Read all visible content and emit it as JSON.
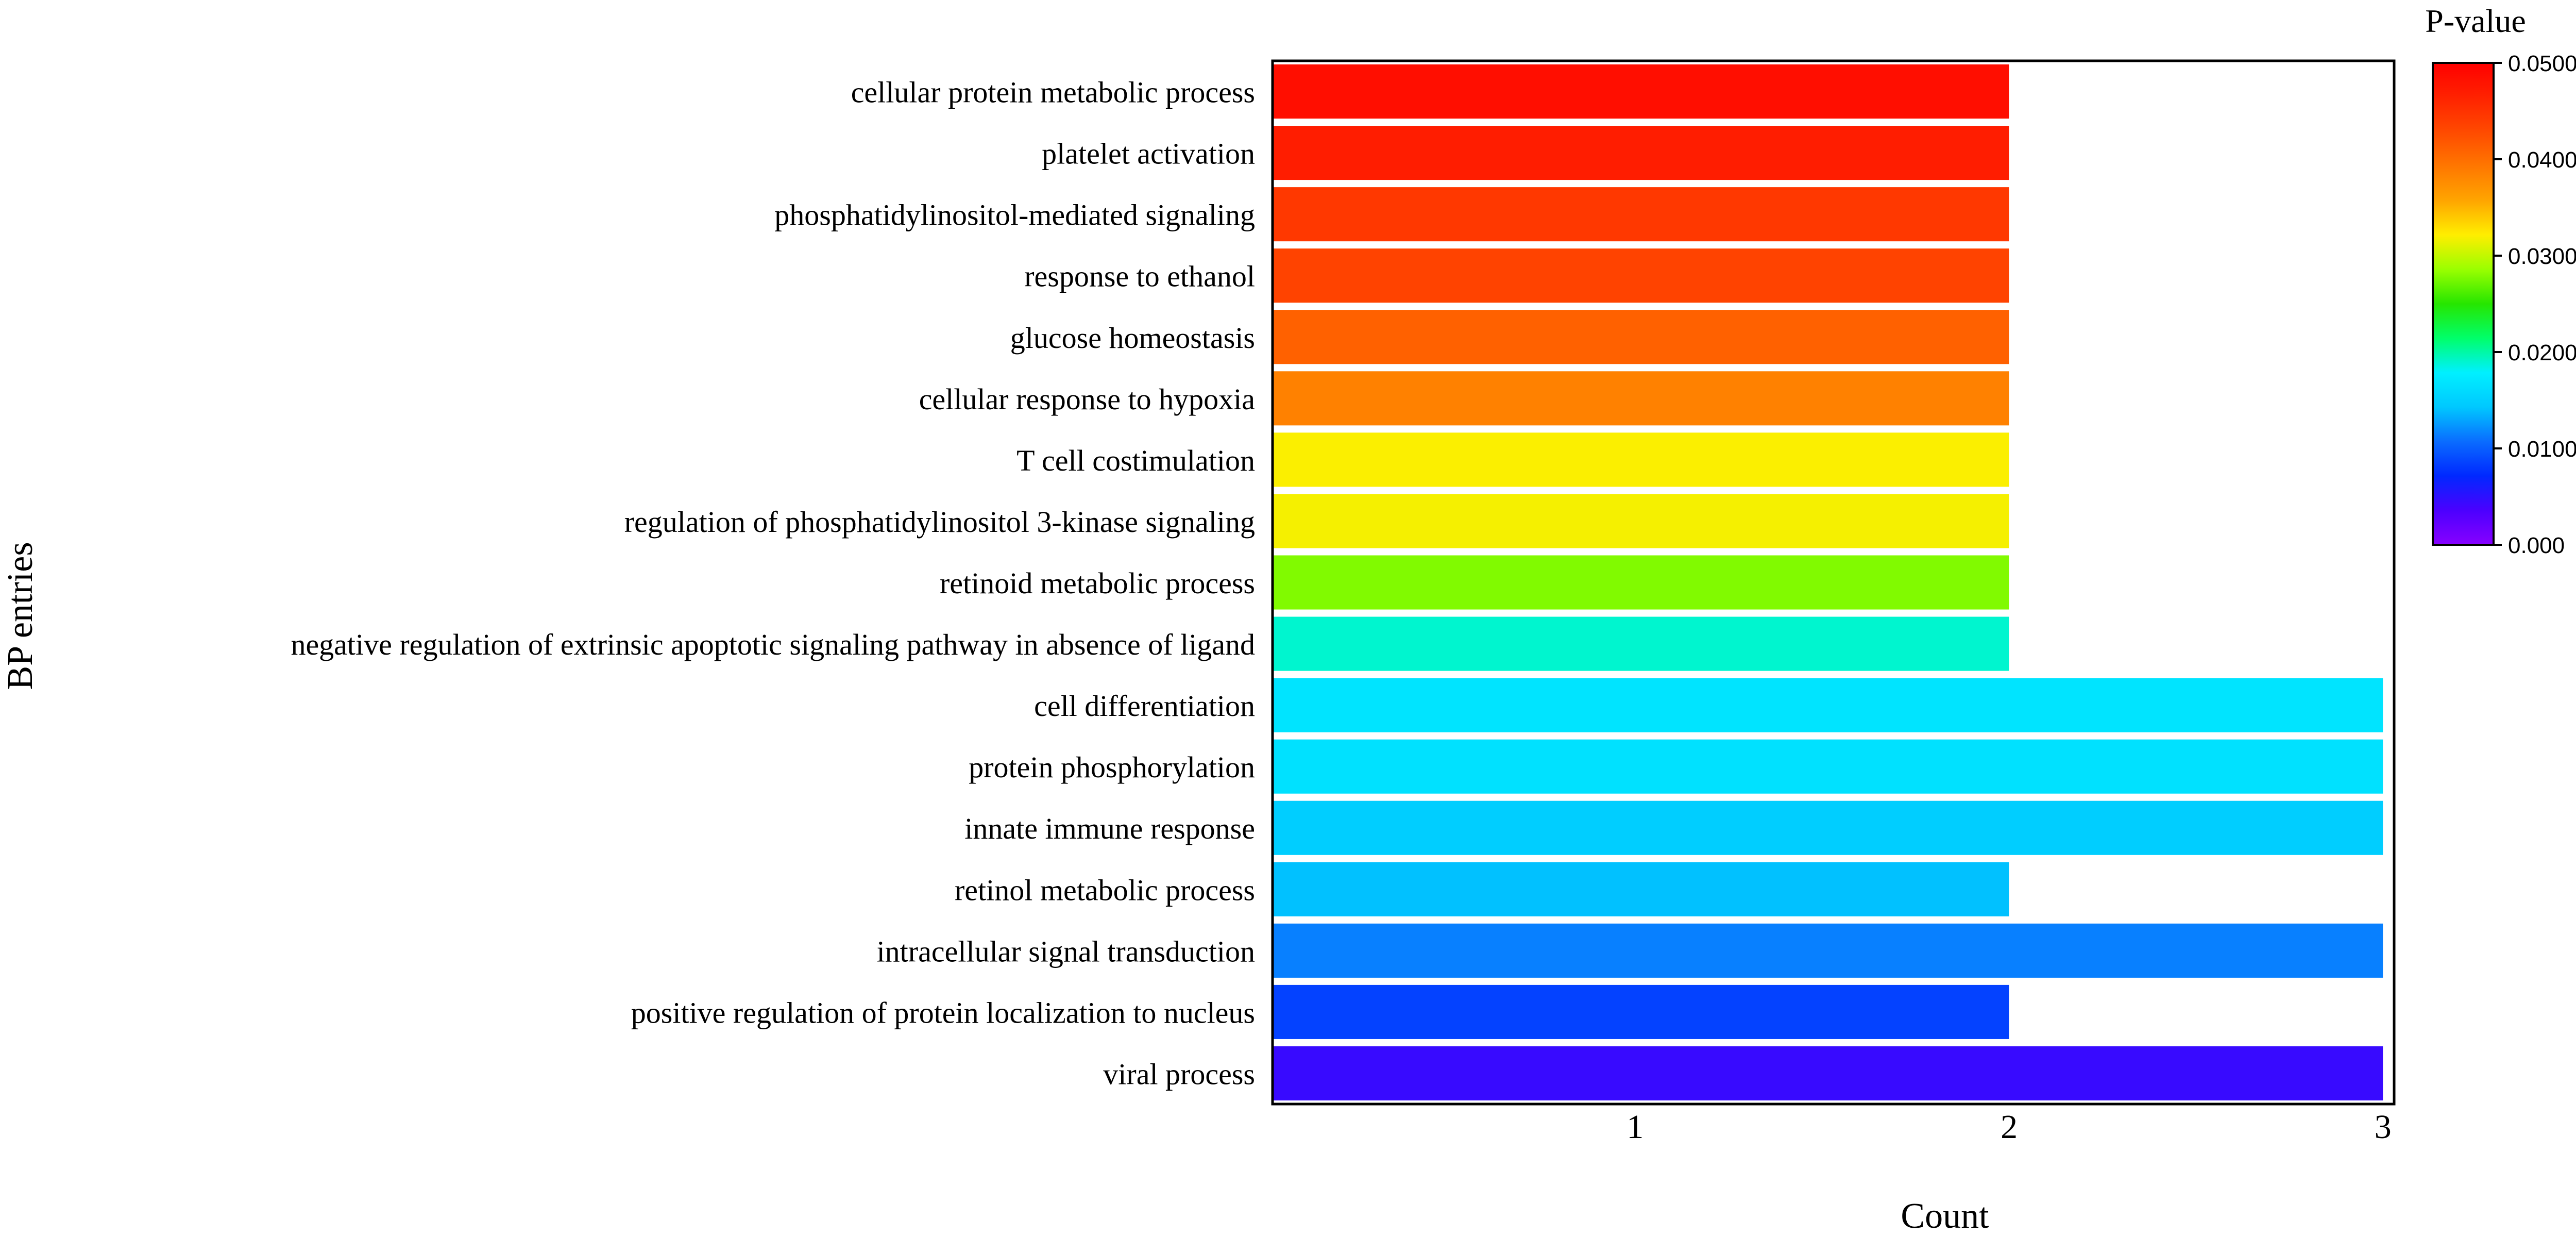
{
  "chart_data": {
    "type": "bar",
    "orientation": "horizontal",
    "xlabel": "Count",
    "ylabel": "BP entries",
    "xlim": [
      0.03,
      3.03
    ],
    "xticks": [
      "1",
      "2",
      "3"
    ],
    "categories": [
      "cellular protein metabolic process",
      "platelet activation",
      "phosphatidylinositol-mediated signaling",
      "response to ethanol",
      "glucose homeostasis",
      "cellular response to hypoxia",
      "T cell costimulation",
      "regulation of phosphatidylinositol 3-kinase signaling",
      "retinoid metabolic process",
      "negative regulation of extrinsic apoptotic signaling pathway in absence of ligand",
      "cell differentiation",
      "protein phosphorylation",
      "innate immune response",
      "retinol metabolic process",
      "intracellular signal transduction",
      "positive regulation of protein localization to nucleus",
      "viral process"
    ],
    "values": [
      2,
      2,
      2,
      2,
      2,
      2,
      2,
      2,
      2,
      2,
      3,
      3,
      3,
      2,
      3,
      2,
      3
    ],
    "pvalues": [
      0.0485,
      0.047,
      0.0445,
      0.0435,
      0.041,
      0.0385,
      0.032,
      0.0318,
      0.0278,
      0.019,
      0.0168,
      0.0165,
      0.0148,
      0.014,
      0.0115,
      0.0085,
      0.0045
    ],
    "colorbar": {
      "title": "P-value",
      "range": [
        0,
        0.05
      ],
      "tick_labels": [
        "0.000",
        "0.01000",
        "0.02000",
        "0.03000",
        "0.04000",
        "0.05000"
      ],
      "tick_values": [
        0,
        0.01,
        0.02,
        0.03,
        0.04,
        0.05
      ],
      "colors": [
        "#8800ff",
        "#4b00ff",
        "#0028ff",
        "#0a6cff",
        "#00c8ff",
        "#00f0ff",
        "#00ff6a",
        "#26e600",
        "#9aff00",
        "#ffee00",
        "#ffa500",
        "#ff7700",
        "#ff4a00",
        "#ff2200",
        "#ff0000"
      ]
    },
    "legend_position": "top-right",
    "grid": false
  }
}
